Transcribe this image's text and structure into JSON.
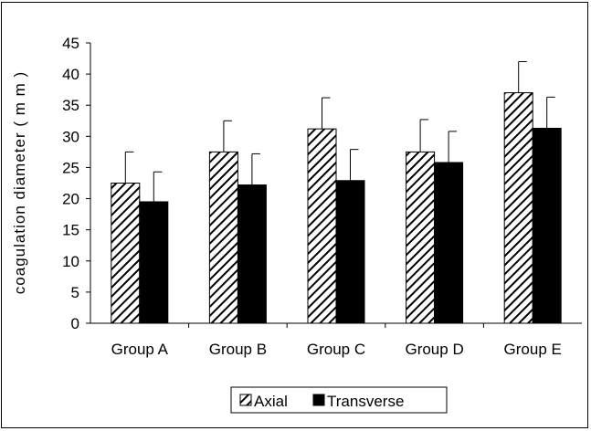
{
  "chart_data": {
    "type": "bar",
    "title": "",
    "xlabel": "",
    "ylabel": "coagulation diameter ( m m )",
    "ylim": [
      0,
      45
    ],
    "yticks": [
      0,
      5,
      10,
      15,
      20,
      25,
      30,
      35,
      40,
      45
    ],
    "categories": [
      "Group A",
      "Group B",
      "Group C",
      "Group D",
      "Group E"
    ],
    "series": [
      {
        "name": "Axial",
        "fill": "hatch",
        "values": [
          22.5,
          27.5,
          31.2,
          27.5,
          37.0
        ],
        "errors": [
          5.0,
          5.0,
          5.0,
          5.2,
          5.0
        ]
      },
      {
        "name": "Transverse",
        "fill": "#000000",
        "values": [
          19.5,
          22.2,
          22.9,
          25.8,
          31.3
        ],
        "errors": [
          4.8,
          5.0,
          5.0,
          5.0,
          5.0
        ]
      }
    ],
    "grid": false,
    "legend": "bottom-center"
  }
}
